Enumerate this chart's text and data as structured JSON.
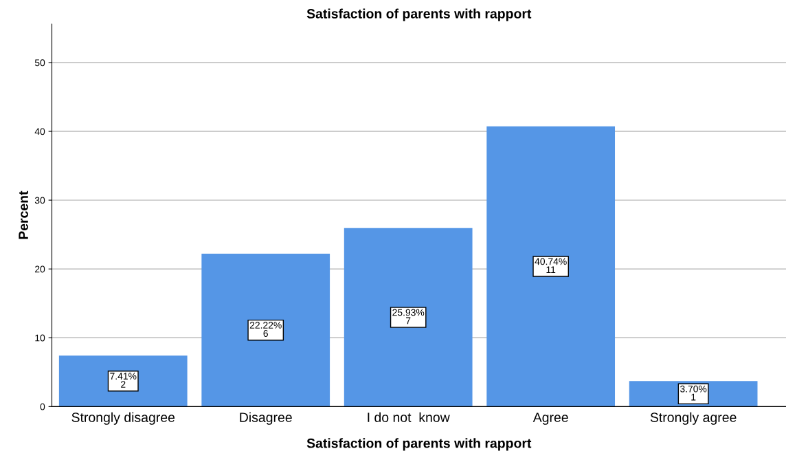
{
  "chart_data": {
    "type": "bar",
    "title": "Satisfaction of parents with rapport",
    "xlabel": "Satisfaction of parents with rapport",
    "ylabel": "Percent",
    "categories": [
      "Strongly disagree",
      "Disagree",
      "I do not  know",
      "Agree",
      "Strongly agree"
    ],
    "values": [
      7.41,
      22.22,
      25.93,
      40.74,
      3.7
    ],
    "value_labels": [
      "7.41%\n2",
      "22.22%\n6",
      "25.93%\n7",
      "40.74%\n11",
      "3.70%\n1"
    ],
    "color": "#5596e6",
    "ylim": [
      0,
      55.6
    ],
    "yticks": [
      0,
      10,
      20,
      30,
      40,
      50
    ],
    "grid": "y"
  }
}
